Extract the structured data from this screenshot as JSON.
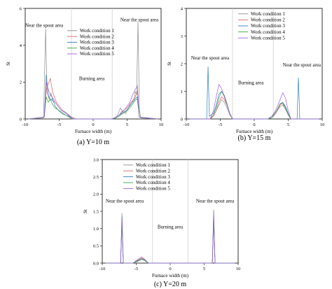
{
  "chart_data": [
    {
      "type": "line",
      "caption": "(a) Y=10 m",
      "xlabel": "Furnace width (m)",
      "ylabel": "St",
      "xlim": [
        -10,
        10
      ],
      "ylim": [
        0,
        6
      ],
      "xticks": [
        -10,
        -5,
        0,
        5,
        10
      ],
      "yticks": [
        0,
        2,
        4,
        6
      ],
      "dividers_x": [
        -3.2,
        2.8
      ],
      "legend_position": "top-center",
      "annotations": [
        {
          "text": "Near the spout area",
          "x": -7.2,
          "y": 5.0
        },
        {
          "text": "Burning area",
          "x": -0.2,
          "y": 2.1
        },
        {
          "text": "Near the spout area",
          "x": 6.8,
          "y": 5.3
        }
      ],
      "series": [
        {
          "name": "Work condition 1",
          "color": "#8c8c8c",
          "x": [
            -9.5,
            -7.3,
            -7.0,
            -6.8,
            -6.5,
            -6.2,
            -6.0,
            -5.6,
            -5.2,
            -4.8,
            -4.2,
            -3.8,
            -3.2,
            -2.5,
            0,
            2.5,
            3.2,
            3.6,
            4.0,
            4.4,
            4.8,
            5.2,
            5.6,
            6.0,
            6.2,
            6.4,
            6.6,
            6.8,
            7.0,
            9.5
          ],
          "y": [
            0,
            0.05,
            4.9,
            1.5,
            1.1,
            1.4,
            1.0,
            0.9,
            0.7,
            0.5,
            0.4,
            0.3,
            0.1,
            0,
            0,
            0,
            0.05,
            0.2,
            0.6,
            0.4,
            0.3,
            0.6,
            0.9,
            1.0,
            1.5,
            1.3,
            5.3,
            0.6,
            0.05,
            0
          ]
        },
        {
          "name": "Work condition 2",
          "color": "#e06060",
          "x": [
            -9.5,
            -7.2,
            -6.9,
            -6.6,
            -6.3,
            -6.0,
            -5.7,
            -5.4,
            -5.0,
            -4.6,
            -4.2,
            -3.8,
            -3.4,
            -2.8,
            0,
            2.8,
            3.4,
            3.8,
            4.2,
            4.6,
            5.0,
            5.4,
            5.8,
            6.2,
            6.5,
            6.8,
            9.5
          ],
          "y": [
            0,
            0.1,
            1.6,
            1.9,
            2.2,
            1.5,
            1.2,
            0.9,
            0.7,
            0.5,
            0.35,
            0.25,
            0.1,
            0,
            0,
            0,
            0.1,
            0.2,
            0.35,
            0.5,
            0.6,
            0.8,
            1.0,
            1.2,
            1.5,
            0.1,
            0
          ]
        },
        {
          "name": "Work condition 3",
          "color": "#2e7fb8",
          "x": [
            -9.5,
            -7.2,
            -6.9,
            -6.6,
            -6.3,
            -6.0,
            -5.6,
            -5.2,
            -4.8,
            -4.4,
            -4.0,
            -3.6,
            -3.0,
            0,
            2.8,
            3.4,
            3.8,
            4.2,
            4.6,
            5.0,
            5.4,
            5.8,
            6.2,
            6.5,
            6.8,
            9.5
          ],
          "y": [
            0,
            0.1,
            2.4,
            1.3,
            1.0,
            1.1,
            0.7,
            0.5,
            0.4,
            0.3,
            0.2,
            0.15,
            0,
            0,
            0,
            0.1,
            0.2,
            0.3,
            0.4,
            0.5,
            0.7,
            0.9,
            1.1,
            1.2,
            0.1,
            0
          ]
        },
        {
          "name": "Work condition 4",
          "color": "#3aa04a",
          "x": [
            -9.5,
            -7.2,
            -6.9,
            -6.6,
            -6.3,
            -6.0,
            -5.6,
            -5.2,
            -4.8,
            -4.4,
            -4.0,
            -3.6,
            -3.0,
            0,
            2.8,
            3.4,
            3.8,
            4.2,
            4.6,
            5.0,
            5.4,
            5.8,
            6.2,
            6.5,
            6.8,
            9.5
          ],
          "y": [
            0,
            0.1,
            1.2,
            0.9,
            1.1,
            0.8,
            0.6,
            0.5,
            0.35,
            0.25,
            0.2,
            0.1,
            0,
            0,
            0,
            0.05,
            0.15,
            0.25,
            0.35,
            0.45,
            0.6,
            0.8,
            1.0,
            1.1,
            0.1,
            0
          ]
        },
        {
          "name": "Work condition 5",
          "color": "#9b5fe0",
          "x": [
            -9.5,
            -7.2,
            -6.9,
            -6.6,
            -6.3,
            -6.0,
            -5.6,
            -5.2,
            -4.8,
            -4.4,
            -4.0,
            -3.6,
            -3.0,
            0,
            2.8,
            3.4,
            3.8,
            4.2,
            4.6,
            5.0,
            5.4,
            5.8,
            6.2,
            6.5,
            6.8,
            9.5
          ],
          "y": [
            0,
            0.1,
            2.0,
            1.6,
            1.3,
            1.2,
            0.9,
            0.7,
            0.5,
            0.4,
            0.3,
            0.2,
            0,
            0,
            0,
            0.1,
            0.2,
            0.4,
            0.5,
            0.7,
            0.9,
            1.3,
            1.6,
            1.8,
            0.1,
            0
          ]
        }
      ]
    },
    {
      "type": "line",
      "caption": "(b) Y=15 m",
      "xlabel": "Furnace width (m)",
      "ylabel": "St",
      "xlim": [
        -10,
        10
      ],
      "ylim": [
        0,
        4
      ],
      "xticks": [
        -10,
        -5,
        0,
        5,
        10
      ],
      "yticks": [
        0,
        1,
        2,
        3,
        4
      ],
      "dividers_x": [
        -3.2,
        2.8
      ],
      "legend_position": "top-right",
      "annotations": [
        {
          "text": "Near the spout area",
          "x": -6.5,
          "y": 2.15
        },
        {
          "text": "Burning area",
          "x": -0.5,
          "y": 1.25
        },
        {
          "text": "Near the spout area",
          "x": 7.0,
          "y": 1.9
        }
      ],
      "series": [
        {
          "name": "Work condition 1",
          "color": "#8c8c8c",
          "x": [
            -9.5,
            -6.5,
            -6.0,
            -5.6,
            -5.2,
            -4.8,
            -4.4,
            -4.0,
            -3.6,
            -3.2,
            0,
            2.0,
            2.6,
            3.0,
            3.4,
            3.8,
            4.2,
            4.6,
            5.0,
            5.4,
            9.5
          ],
          "y": [
            0,
            0,
            0.1,
            0.3,
            0.5,
            0.7,
            0.6,
            0.4,
            0.15,
            0,
            0,
            0,
            0.05,
            0.15,
            0.3,
            0.45,
            0.5,
            0.35,
            0.15,
            0,
            0
          ]
        },
        {
          "name": "Work condition 2",
          "color": "#e06060",
          "x": [
            -9.5,
            -6.5,
            -6.0,
            -5.6,
            -5.2,
            -4.8,
            -4.4,
            -4.0,
            -3.6,
            -3.2,
            0,
            2.0,
            2.6,
            3.0,
            3.4,
            3.8,
            4.2,
            4.6,
            5.0,
            5.4,
            9.5
          ],
          "y": [
            0,
            0,
            0.1,
            0.3,
            0.6,
            0.8,
            0.7,
            0.5,
            0.2,
            0,
            0,
            0,
            0.05,
            0.15,
            0.3,
            0.5,
            0.6,
            0.4,
            0.15,
            0,
            0
          ]
        },
        {
          "name": "Work condition 3",
          "color": "#2e7fb8",
          "x": [
            -9.5,
            -7.0,
            -6.8,
            -6.6,
            -6.0,
            -5.6,
            -5.2,
            -4.8,
            -4.4,
            -4.0,
            -3.6,
            -3.2,
            0,
            2.0,
            2.6,
            3.0,
            3.4,
            3.8,
            4.2,
            4.6,
            5.0,
            5.4,
            6.3,
            6.5,
            6.7,
            9.5
          ],
          "y": [
            0,
            0,
            1.9,
            0.1,
            0.2,
            0.5,
            0.9,
            1.0,
            0.8,
            0.5,
            0.2,
            0,
            0,
            0,
            0.1,
            0.2,
            0.35,
            0.55,
            0.6,
            0.45,
            0.2,
            0,
            0,
            1.5,
            0,
            0
          ]
        },
        {
          "name": "Work condition 4",
          "color": "#3aa04a",
          "x": [
            -9.5,
            -6.5,
            -6.0,
            -5.6,
            -5.2,
            -4.8,
            -4.4,
            -4.0,
            -3.6,
            -3.2,
            0,
            2.0,
            2.6,
            3.0,
            3.4,
            3.8,
            4.2,
            4.6,
            5.0,
            5.4,
            9.5
          ],
          "y": [
            0,
            0,
            0.15,
            0.4,
            0.75,
            1.0,
            0.85,
            0.55,
            0.2,
            0,
            0,
            0,
            0.05,
            0.2,
            0.35,
            0.55,
            0.55,
            0.4,
            0.15,
            0,
            0
          ]
        },
        {
          "name": "Work condition 5",
          "color": "#9b5fe0",
          "x": [
            -9.5,
            -6.5,
            -6.0,
            -5.6,
            -5.2,
            -4.8,
            -4.4,
            -4.0,
            -3.6,
            -3.2,
            0,
            2.0,
            2.6,
            3.0,
            3.4,
            3.8,
            4.2,
            4.6,
            5.0,
            5.4,
            9.5
          ],
          "y": [
            0,
            0,
            0.3,
            0.8,
            1.25,
            1.1,
            0.8,
            0.5,
            0.2,
            0,
            0,
            0,
            0.1,
            0.25,
            0.45,
            0.7,
            0.95,
            0.75,
            0.3,
            0,
            0
          ]
        }
      ]
    },
    {
      "type": "line",
      "caption": "(c) Y=20 m",
      "xlabel": "Furnace width (m)",
      "ylabel": "St",
      "xlim": [
        -10,
        10
      ],
      "ylim": [
        0,
        3
      ],
      "xticks": [
        -10,
        -5,
        0,
        5,
        10
      ],
      "yticks": [
        0,
        0.5,
        1.0,
        1.5,
        2.0,
        2.5,
        3.0
      ],
      "ytick_labels": [
        "0.0",
        "0.5",
        "1.0",
        "1.5",
        "2.0",
        "2.5",
        "3.0"
      ],
      "dividers_x": [
        -2.6,
        2.6
      ],
      "legend_position": "top-center",
      "annotations": [
        {
          "text": "Near the spout area",
          "x": -6.7,
          "y": 1.75
        },
        {
          "text": "Burning area",
          "x": 0.0,
          "y": 1.0
        },
        {
          "text": "Near the spout area",
          "x": 6.6,
          "y": 1.75
        }
      ],
      "series": [
        {
          "name": "Work condition 1",
          "color": "#8c8c8c",
          "x": [
            -9.5,
            -7.3,
            -7.1,
            -6.9,
            -5.5,
            -4.8,
            -4.2,
            -3.8,
            -3.2,
            0,
            6.2,
            6.4,
            6.6,
            9.5
          ],
          "y": [
            0,
            0,
            1.45,
            0,
            0,
            0.05,
            0.1,
            0.08,
            0,
            0,
            0,
            1.55,
            0,
            0
          ]
        },
        {
          "name": "Work condition 2",
          "color": "#e06060",
          "x": [
            -9.5,
            -7.3,
            -7.1,
            -6.9,
            -5.5,
            -4.8,
            -4.2,
            -3.8,
            -3.2,
            0,
            6.2,
            6.4,
            6.6,
            9.5
          ],
          "y": [
            0,
            0,
            1.2,
            0,
            0,
            0.08,
            0.15,
            0.1,
            0,
            0,
            0,
            1.3,
            0,
            0
          ]
        },
        {
          "name": "Work condition 3",
          "color": "#2e7fb8",
          "x": [
            -9.5,
            -7.3,
            -7.1,
            -6.9,
            -5.5,
            -4.8,
            -4.2,
            -3.8,
            -3.2,
            0,
            6.2,
            6.4,
            6.6,
            9.5
          ],
          "y": [
            0,
            0,
            1.35,
            0,
            0,
            0.07,
            0.12,
            0.09,
            0,
            0,
            0,
            1.4,
            0,
            0
          ]
        },
        {
          "name": "Work condition 4",
          "color": "#3aa04a",
          "x": [
            -9.5,
            -7.3,
            -7.1,
            -6.9,
            -5.5,
            -4.8,
            -4.2,
            -3.8,
            -3.2,
            0,
            6.2,
            6.4,
            6.6,
            9.5
          ],
          "y": [
            0,
            0,
            1.1,
            0,
            0,
            0.06,
            0.13,
            0.08,
            0,
            0,
            0,
            1.2,
            0,
            0
          ]
        },
        {
          "name": "Work condition 5",
          "color": "#9b5fe0",
          "x": [
            -9.5,
            -7.3,
            -7.1,
            -6.9,
            -5.5,
            -4.8,
            -4.2,
            -3.8,
            -3.2,
            0,
            6.2,
            6.4,
            6.6,
            9.5
          ],
          "y": [
            0,
            0,
            1.3,
            0,
            0,
            0.1,
            0.18,
            0.12,
            0,
            0,
            0,
            1.5,
            0,
            0
          ]
        }
      ]
    }
  ]
}
